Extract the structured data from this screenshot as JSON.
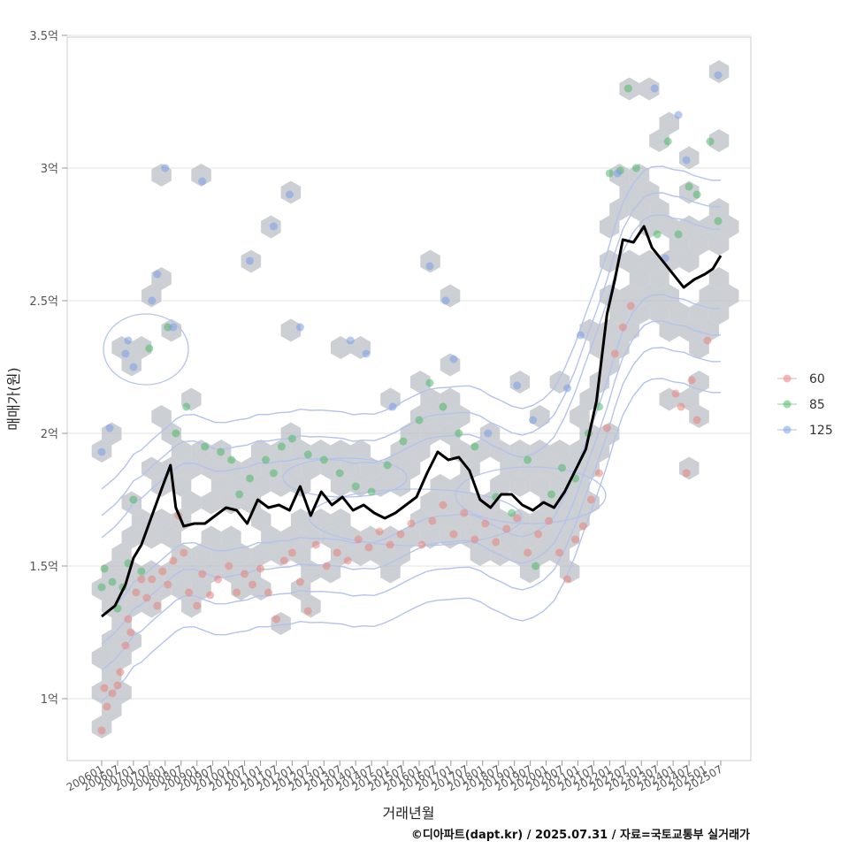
{
  "chart_data": {
    "type": "scatter",
    "title": "",
    "xlabel": "거래년월",
    "ylabel": "매매가(원)",
    "caption": "©디아파트(dapt.kr) / 2025.07.31 / 자료=국토교통부 실거래가",
    "x_range": [
      "2006-01",
      "2025-07"
    ],
    "ylim": [
      0.8,
      3.55
    ],
    "y_ticks": [
      {
        "value": 1.0,
        "label": "1억"
      },
      {
        "value": 1.5,
        "label": "1.5억"
      },
      {
        "value": 2.0,
        "label": "2억"
      },
      {
        "value": 2.5,
        "label": "2.5억"
      },
      {
        "value": 3.0,
        "label": "3억"
      },
      {
        "value": 3.5,
        "label": "3.5억"
      }
    ],
    "x_ticks": [
      "200601",
      "200607",
      "200701",
      "200707",
      "200801",
      "200807",
      "200901",
      "200907",
      "201001",
      "201007",
      "201101",
      "201107",
      "201201",
      "201207",
      "201301",
      "201307",
      "201401",
      "201407",
      "201501",
      "201507",
      "201601",
      "201607",
      "201701",
      "201707",
      "201801",
      "201807",
      "201901",
      "201907",
      "202001",
      "202007",
      "202101",
      "202107",
      "202201",
      "202207",
      "202301",
      "202307",
      "202401",
      "202407",
      "202501",
      "202507"
    ],
    "grid": true,
    "legend": {
      "placement": "right",
      "items": [
        {
          "label": "60",
          "color": "#e8837b"
        },
        {
          "label": "85",
          "color": "#4fb86a"
        },
        {
          "label": "125",
          "color": "#7a9ee8"
        }
      ]
    },
    "hexbin_color": "#b8bdc2",
    "contour_color": "#b5c3ec",
    "trend_color": "#000000",
    "trend_line": [
      {
        "x": "2006-01",
        "y": 1.31
      },
      {
        "x": "2006-06",
        "y": 1.35
      },
      {
        "x": "2006-10",
        "y": 1.43
      },
      {
        "x": "2007-01",
        "y": 1.53
      },
      {
        "x": "2007-04",
        "y": 1.58
      },
      {
        "x": "2007-08",
        "y": 1.69
      },
      {
        "x": "2007-12",
        "y": 1.8
      },
      {
        "x": "2008-03",
        "y": 1.88
      },
      {
        "x": "2008-05",
        "y": 1.72
      },
      {
        "x": "2008-08",
        "y": 1.65
      },
      {
        "x": "2008-12",
        "y": 1.66
      },
      {
        "x": "2009-04",
        "y": 1.66
      },
      {
        "x": "2009-08",
        "y": 1.69
      },
      {
        "x": "2009-12",
        "y": 1.72
      },
      {
        "x": "2010-04",
        "y": 1.71
      },
      {
        "x": "2010-08",
        "y": 1.66
      },
      {
        "x": "2010-12",
        "y": 1.75
      },
      {
        "x": "2011-04",
        "y": 1.72
      },
      {
        "x": "2011-08",
        "y": 1.73
      },
      {
        "x": "2011-12",
        "y": 1.71
      },
      {
        "x": "2012-04",
        "y": 1.8
      },
      {
        "x": "2012-08",
        "y": 1.69
      },
      {
        "x": "2012-12",
        "y": 1.78
      },
      {
        "x": "2013-04",
        "y": 1.73
      },
      {
        "x": "2013-08",
        "y": 1.76
      },
      {
        "x": "2013-12",
        "y": 1.71
      },
      {
        "x": "2014-04",
        "y": 1.73
      },
      {
        "x": "2014-08",
        "y": 1.7
      },
      {
        "x": "2014-12",
        "y": 1.68
      },
      {
        "x": "2015-04",
        "y": 1.7
      },
      {
        "x": "2015-08",
        "y": 1.73
      },
      {
        "x": "2015-12",
        "y": 1.76
      },
      {
        "x": "2016-04",
        "y": 1.85
      },
      {
        "x": "2016-08",
        "y": 1.93
      },
      {
        "x": "2016-12",
        "y": 1.9
      },
      {
        "x": "2017-04",
        "y": 1.91
      },
      {
        "x": "2017-08",
        "y": 1.86
      },
      {
        "x": "2017-12",
        "y": 1.75
      },
      {
        "x": "2018-04",
        "y": 1.72
      },
      {
        "x": "2018-08",
        "y": 1.77
      },
      {
        "x": "2018-12",
        "y": 1.77
      },
      {
        "x": "2019-04",
        "y": 1.73
      },
      {
        "x": "2019-08",
        "y": 1.71
      },
      {
        "x": "2019-12",
        "y": 1.74
      },
      {
        "x": "2020-04",
        "y": 1.72
      },
      {
        "x": "2020-08",
        "y": 1.78
      },
      {
        "x": "2020-12",
        "y": 1.86
      },
      {
        "x": "2021-04",
        "y": 1.94
      },
      {
        "x": "2021-08",
        "y": 2.12
      },
      {
        "x": "2021-12",
        "y": 2.45
      },
      {
        "x": "2022-03",
        "y": 2.58
      },
      {
        "x": "2022-06",
        "y": 2.73
      },
      {
        "x": "2022-10",
        "y": 2.72
      },
      {
        "x": "2023-02",
        "y": 2.78
      },
      {
        "x": "2023-05",
        "y": 2.7
      },
      {
        "x": "2023-09",
        "y": 2.65
      },
      {
        "x": "2024-01",
        "y": 2.6
      },
      {
        "x": "2024-05",
        "y": 2.55
      },
      {
        "x": "2024-09",
        "y": 2.58
      },
      {
        "x": "2025-01",
        "y": 2.6
      },
      {
        "x": "2025-04",
        "y": 2.62
      },
      {
        "x": "2025-07",
        "y": 2.67
      }
    ],
    "series": [
      {
        "name": "60",
        "points": [
          {
            "x": "2006-01",
            "y": 0.88
          },
          {
            "x": "2006-02",
            "y": 1.04
          },
          {
            "x": "2006-03",
            "y": 0.97
          },
          {
            "x": "2006-05",
            "y": 1.02
          },
          {
            "x": "2006-07",
            "y": 1.05
          },
          {
            "x": "2006-08",
            "y": 1.1
          },
          {
            "x": "2006-10",
            "y": 1.2
          },
          {
            "x": "2006-11",
            "y": 1.3
          },
          {
            "x": "2006-12",
            "y": 1.25
          },
          {
            "x": "2007-02",
            "y": 1.4
          },
          {
            "x": "2007-04",
            "y": 1.45
          },
          {
            "x": "2007-06",
            "y": 1.38
          },
          {
            "x": "2007-08",
            "y": 1.45
          },
          {
            "x": "2007-10",
            "y": 1.35
          },
          {
            "x": "2007-12",
            "y": 1.48
          },
          {
            "x": "2008-02",
            "y": 1.43
          },
          {
            "x": "2008-04",
            "y": 1.52
          },
          {
            "x": "2008-06",
            "y": 1.69
          },
          {
            "x": "2008-08",
            "y": 1.55
          },
          {
            "x": "2008-10",
            "y": 1.4
          },
          {
            "x": "2009-01",
            "y": 1.35
          },
          {
            "x": "2009-03",
            "y": 1.47
          },
          {
            "x": "2009-06",
            "y": 1.39
          },
          {
            "x": "2009-09",
            "y": 1.45
          },
          {
            "x": "2010-01",
            "y": 1.5
          },
          {
            "x": "2010-04",
            "y": 1.4
          },
          {
            "x": "2010-07",
            "y": 1.47
          },
          {
            "x": "2010-10",
            "y": 1.43
          },
          {
            "x": "2011-01",
            "y": 1.49
          },
          {
            "x": "2011-04",
            "y": 1.4
          },
          {
            "x": "2011-07",
            "y": 1.3
          },
          {
            "x": "2011-10",
            "y": 1.52
          },
          {
            "x": "2012-01",
            "y": 1.55
          },
          {
            "x": "2012-04",
            "y": 1.44
          },
          {
            "x": "2012-07",
            "y": 1.33
          },
          {
            "x": "2012-10",
            "y": 1.58
          },
          {
            "x": "2013-02",
            "y": 1.5
          },
          {
            "x": "2013-06",
            "y": 1.55
          },
          {
            "x": "2013-10",
            "y": 1.52
          },
          {
            "x": "2014-02",
            "y": 1.6
          },
          {
            "x": "2014-06",
            "y": 1.57
          },
          {
            "x": "2014-10",
            "y": 1.63
          },
          {
            "x": "2015-02",
            "y": 1.58
          },
          {
            "x": "2015-06",
            "y": 1.62
          },
          {
            "x": "2015-10",
            "y": 1.66
          },
          {
            "x": "2016-02",
            "y": 1.58
          },
          {
            "x": "2016-06",
            "y": 1.67
          },
          {
            "x": "2016-10",
            "y": 1.73
          },
          {
            "x": "2017-02",
            "y": 1.62
          },
          {
            "x": "2017-06",
            "y": 1.7
          },
          {
            "x": "2017-10",
            "y": 1.6
          },
          {
            "x": "2018-02",
            "y": 1.66
          },
          {
            "x": "2018-06",
            "y": 1.59
          },
          {
            "x": "2018-10",
            "y": 1.64
          },
          {
            "x": "2019-02",
            "y": 1.68
          },
          {
            "x": "2019-06",
            "y": 1.55
          },
          {
            "x": "2019-10",
            "y": 1.62
          },
          {
            "x": "2020-02",
            "y": 1.67
          },
          {
            "x": "2020-06",
            "y": 1.55
          },
          {
            "x": "2020-09",
            "y": 1.45
          },
          {
            "x": "2020-12",
            "y": 1.6
          },
          {
            "x": "2021-03",
            "y": 1.65
          },
          {
            "x": "2021-06",
            "y": 1.75
          },
          {
            "x": "2021-09",
            "y": 1.85
          },
          {
            "x": "2021-12",
            "y": 2.02
          },
          {
            "x": "2022-03",
            "y": 2.3
          },
          {
            "x": "2022-06",
            "y": 2.4
          },
          {
            "x": "2022-09",
            "y": 2.48
          },
          {
            "x": "2024-02",
            "y": 2.15
          },
          {
            "x": "2024-04",
            "y": 2.1
          },
          {
            "x": "2024-06",
            "y": 1.85
          },
          {
            "x": "2024-08",
            "y": 2.2
          },
          {
            "x": "2024-10",
            "y": 2.05
          },
          {
            "x": "2025-02",
            "y": 2.35
          }
        ]
      },
      {
        "name": "85",
        "points": [
          {
            "x": "2006-01",
            "y": 1.42
          },
          {
            "x": "2006-02",
            "y": 1.49
          },
          {
            "x": "2006-05",
            "y": 1.44
          },
          {
            "x": "2006-07",
            "y": 1.34
          },
          {
            "x": "2006-09",
            "y": 1.42
          },
          {
            "x": "2006-11",
            "y": 1.51
          },
          {
            "x": "2007-01",
            "y": 1.75
          },
          {
            "x": "2007-04",
            "y": 1.48
          },
          {
            "x": "2007-07",
            "y": 2.32
          },
          {
            "x": "2008-02",
            "y": 2.4
          },
          {
            "x": "2008-05",
            "y": 2.0
          },
          {
            "x": "2008-09",
            "y": 2.1
          },
          {
            "x": "2009-04",
            "y": 1.95
          },
          {
            "x": "2009-10",
            "y": 1.93
          },
          {
            "x": "2010-02",
            "y": 1.9
          },
          {
            "x": "2010-05",
            "y": 1.77
          },
          {
            "x": "2010-09",
            "y": 1.83
          },
          {
            "x": "2011-03",
            "y": 1.9
          },
          {
            "x": "2011-06",
            "y": 1.85
          },
          {
            "x": "2011-09",
            "y": 1.95
          },
          {
            "x": "2012-01",
            "y": 1.98
          },
          {
            "x": "2012-07",
            "y": 1.92
          },
          {
            "x": "2013-01",
            "y": 1.9
          },
          {
            "x": "2013-07",
            "y": 1.85
          },
          {
            "x": "2014-01",
            "y": 1.8
          },
          {
            "x": "2014-07",
            "y": 1.78
          },
          {
            "x": "2015-01",
            "y": 1.88
          },
          {
            "x": "2015-07",
            "y": 1.97
          },
          {
            "x": "2016-01",
            "y": 2.05
          },
          {
            "x": "2016-05",
            "y": 2.19
          },
          {
            "x": "2016-10",
            "y": 2.1
          },
          {
            "x": "2017-04",
            "y": 2.0
          },
          {
            "x": "2017-10",
            "y": 1.95
          },
          {
            "x": "2018-06",
            "y": 1.76
          },
          {
            "x": "2018-12",
            "y": 1.7
          },
          {
            "x": "2019-06",
            "y": 1.9
          },
          {
            "x": "2019-09",
            "y": 1.5
          },
          {
            "x": "2020-03",
            "y": 1.77
          },
          {
            "x": "2020-07",
            "y": 1.87
          },
          {
            "x": "2020-12",
            "y": 1.83
          },
          {
            "x": "2021-05",
            "y": 2.0
          },
          {
            "x": "2021-09",
            "y": 2.1
          },
          {
            "x": "2022-01",
            "y": 2.98
          },
          {
            "x": "2022-05",
            "y": 2.99
          },
          {
            "x": "2022-08",
            "y": 3.3
          },
          {
            "x": "2022-11",
            "y": 3.0
          },
          {
            "x": "2023-07",
            "y": 2.75
          },
          {
            "x": "2023-11",
            "y": 3.1
          },
          {
            "x": "2024-03",
            "y": 2.75
          },
          {
            "x": "2024-07",
            "y": 2.93
          },
          {
            "x": "2024-10",
            "y": 2.9
          },
          {
            "x": "2025-03",
            "y": 3.1
          },
          {
            "x": "2025-06",
            "y": 2.8
          }
        ]
      },
      {
        "name": "125",
        "points": [
          {
            "x": "2006-01",
            "y": 1.93
          },
          {
            "x": "2006-04",
            "y": 2.02
          },
          {
            "x": "2006-10",
            "y": 2.3
          },
          {
            "x": "2006-11",
            "y": 2.35
          },
          {
            "x": "2007-01",
            "y": 2.25
          },
          {
            "x": "2007-08",
            "y": 2.5
          },
          {
            "x": "2007-10",
            "y": 2.6
          },
          {
            "x": "2008-01",
            "y": 3.0
          },
          {
            "x": "2008-04",
            "y": 2.4
          },
          {
            "x": "2009-03",
            "y": 2.95
          },
          {
            "x": "2010-09",
            "y": 2.65
          },
          {
            "x": "2011-06",
            "y": 2.78
          },
          {
            "x": "2011-12",
            "y": 2.9
          },
          {
            "x": "2012-04",
            "y": 2.4
          },
          {
            "x": "2013-11",
            "y": 2.35
          },
          {
            "x": "2014-05",
            "y": 2.3
          },
          {
            "x": "2015-03",
            "y": 2.1
          },
          {
            "x": "2016-05",
            "y": 2.63
          },
          {
            "x": "2016-11",
            "y": 2.5
          },
          {
            "x": "2017-02",
            "y": 2.28
          },
          {
            "x": "2018-03",
            "y": 2.0
          },
          {
            "x": "2019-02",
            "y": 2.18
          },
          {
            "x": "2019-08",
            "y": 2.05
          },
          {
            "x": "2020-09",
            "y": 2.17
          },
          {
            "x": "2021-02",
            "y": 2.37
          },
          {
            "x": "2022-04",
            "y": 2.98
          },
          {
            "x": "2023-06",
            "y": 3.3
          },
          {
            "x": "2023-10",
            "y": 2.66
          },
          {
            "x": "2024-03",
            "y": 3.2
          },
          {
            "x": "2024-06",
            "y": 3.03
          },
          {
            "x": "2025-06",
            "y": 3.35
          }
        ]
      }
    ]
  }
}
